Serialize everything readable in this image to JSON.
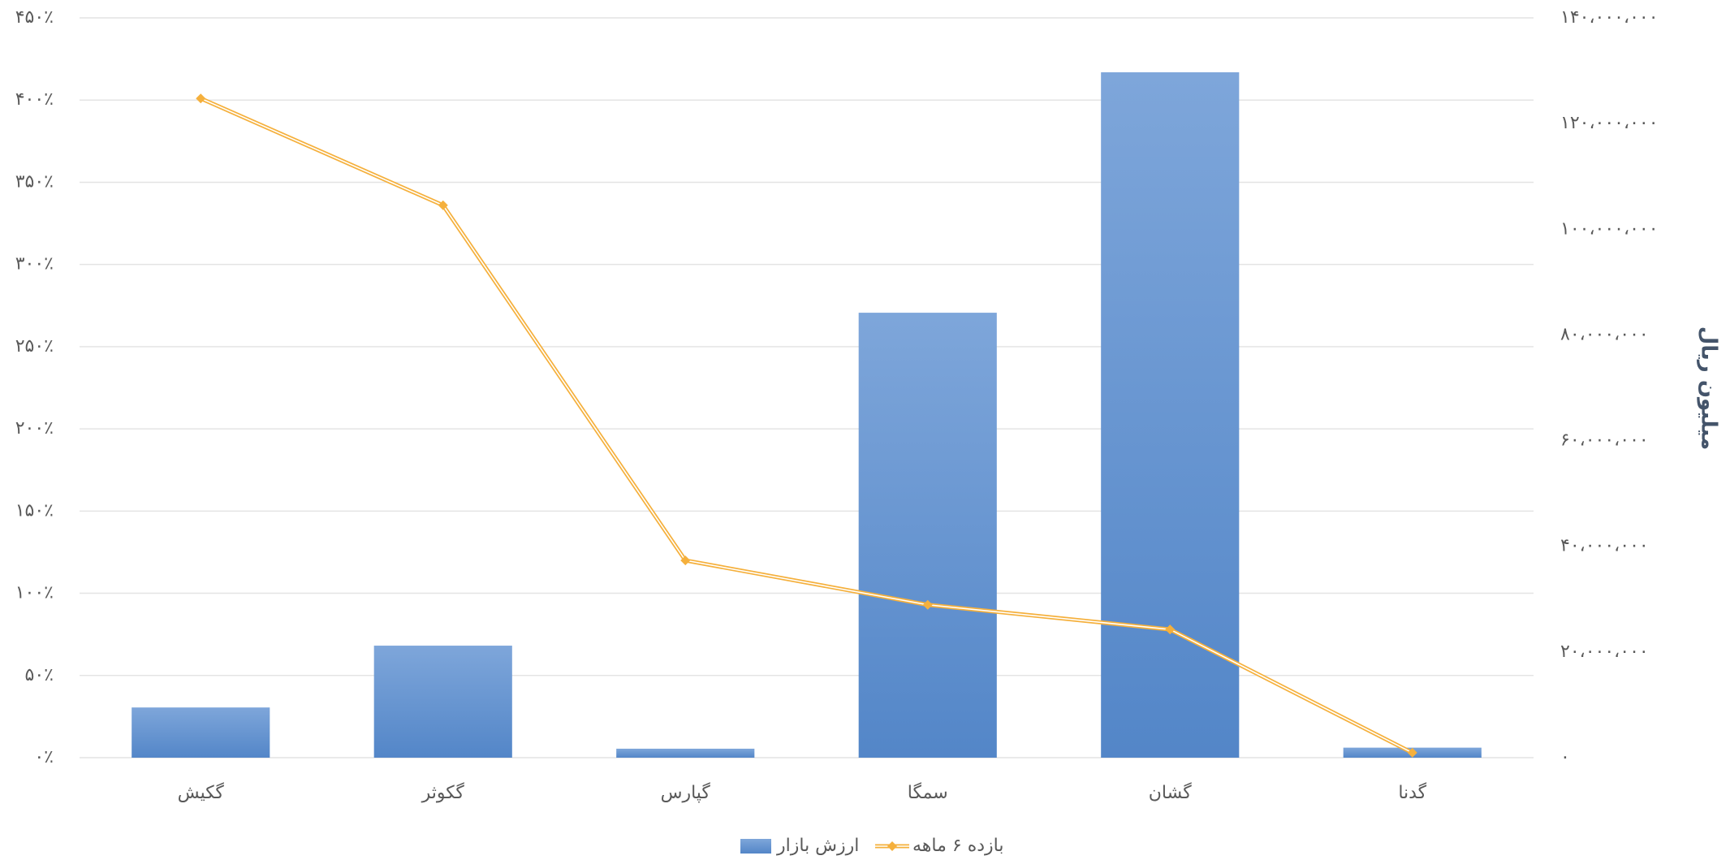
{
  "chart_data": {
    "type": "bar_line",
    "categories": [
      "گکیش",
      "گکوثر",
      "گپارس",
      "سمگا",
      "گشان",
      "گدنا"
    ],
    "series": [
      {
        "name": "ارزش بازار",
        "type": "bar",
        "axis": "y2",
        "color": "#5b8dd0",
        "values": [
          9500000,
          21200000,
          1700000,
          84200000,
          129700000,
          1900000
        ]
      },
      {
        "name": "بازده ۶ ماهه",
        "type": "line",
        "axis": "y",
        "color": "#f5b03c",
        "values": [
          401,
          336,
          120,
          93,
          78,
          3
        ]
      }
    ],
    "ylim": [
      0,
      450
    ],
    "yticks": [
      {
        "value": 0,
        "label": "۰٪"
      },
      {
        "value": 50,
        "label": "۵۰٪"
      },
      {
        "value": 100,
        "label": "۱۰۰٪"
      },
      {
        "value": 150,
        "label": "۱۵۰٪"
      },
      {
        "value": 200,
        "label": "۲۰۰٪"
      },
      {
        "value": 250,
        "label": "۲۵۰٪"
      },
      {
        "value": 300,
        "label": "۳۰۰٪"
      },
      {
        "value": 350,
        "label": "۳۵۰٪"
      },
      {
        "value": 400,
        "label": "۴۰۰٪"
      },
      {
        "value": 450,
        "label": "۴۵۰٪"
      }
    ],
    "y2lim": [
      0,
      140000000
    ],
    "y2ticks": [
      {
        "value": 0,
        "label": "۰"
      },
      {
        "value": 20000000,
        "label": "۲۰،۰۰۰،۰۰۰"
      },
      {
        "value": 40000000,
        "label": "۴۰،۰۰۰،۰۰۰"
      },
      {
        "value": 60000000,
        "label": "۶۰،۰۰۰،۰۰۰"
      },
      {
        "value": 80000000,
        "label": "۸۰،۰۰۰،۰۰۰"
      },
      {
        "value": 100000000,
        "label": "۱۰۰،۰۰۰،۰۰۰"
      },
      {
        "value": 120000000,
        "label": "۱۲۰،۰۰۰،۰۰۰"
      },
      {
        "value": 140000000,
        "label": "۱۴۰،۰۰۰،۰۰۰"
      }
    ],
    "y2label": "میلیون ریال",
    "grid": true,
    "legend": "bottom"
  }
}
